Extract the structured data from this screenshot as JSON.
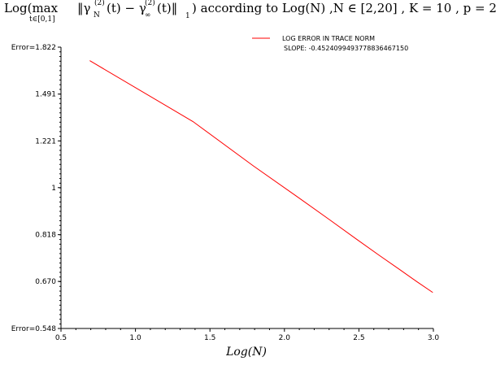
{
  "chart_data": {
    "type": "line",
    "title": "Log(max_{t∈[0,1]} ‖γ_N^{(2)}(t) − γ_∞^{(2)}(t)‖_1) according to Log(N) ,N ∈ [2,20] , K = 10 , p = 2",
    "title_parts": {
      "log_max": "Log(max",
      "subscript": "t∈[0,1]",
      "norm_expr": "‖γ",
      "gamma_n_sub": "N",
      "gamma_sup": "(2)",
      "mid": "(t) − γ",
      "gamma_inf_sub": "∞",
      "end_expr": "(t)‖",
      "norm_sub": "1",
      "rest": ") according to Log(N) ,N ∈ [2,20] , K = 10 , p = 2"
    },
    "xlabel": "Log(N)",
    "ylabel": "",
    "x_ticks": [
      "0.5",
      "1.0",
      "1.5",
      "2.0",
      "2.5",
      "3.0"
    ],
    "y_ticks": [
      "Error=0.548",
      "0.670",
      "0.818",
      "1",
      "1.221",
      "1.491",
      "Error=1.822"
    ],
    "xlim": [
      0.5,
      3.0
    ],
    "ylim": [
      0.548,
      1.822
    ],
    "y_scale": "log",
    "grid": false,
    "legend_position": "top-right",
    "series": [
      {
        "name": "LOG ERROR IN TRACE NORM",
        "color": "#ff0000",
        "x": [
          0.693,
          1.386,
          1.792,
          2.079,
          2.303,
          2.485,
          2.639,
          2.773,
          2.89,
          2.996
        ],
        "y": [
          1.72,
          1.326,
          1.097,
          0.965,
          0.872,
          0.802,
          0.748,
          0.705,
          0.669,
          0.639
        ]
      }
    ],
    "legend_entries": [
      "LOG ERROR IN TRACE NORM",
      "SLOPE: -0.45240994937788364671​50"
    ]
  }
}
